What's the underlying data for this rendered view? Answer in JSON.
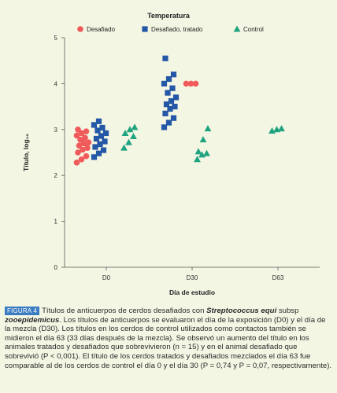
{
  "chart_data": {
    "type": "scatter",
    "title": "Temperatura",
    "xlabel": "Día de estudio",
    "ylabel": "Título, log₁₀",
    "categories": [
      "D0",
      "D30",
      "D63"
    ],
    "ylim": [
      0,
      5
    ],
    "yticks": [
      "0",
      "1",
      "2",
      "3",
      "4",
      "5"
    ],
    "grid": false,
    "legend_position": "top",
    "series": [
      {
        "name": "Desafiado",
        "color": "#f05a5a",
        "marker": "circle",
        "points": [
          {
            "category": "D0",
            "values": [
              2.28,
              2.35,
              2.42,
              2.5,
              2.56,
              2.6,
              2.65,
              2.7,
              2.72,
              2.78,
              2.82,
              2.87,
              2.92,
              2.96,
              3.0
            ]
          },
          {
            "category": "D30",
            "values": [
              4.0,
              4.0,
              4.0
            ]
          }
        ]
      },
      {
        "name": "Desafiado, tratado",
        "color": "#2457a6",
        "marker": "square",
        "points": [
          {
            "category": "D0",
            "values": [
              2.4,
              2.48,
              2.55,
              2.62,
              2.68,
              2.74,
              2.8,
              2.86,
              2.92,
              2.98,
              3.04,
              3.1,
              3.18
            ]
          },
          {
            "category": "D30",
            "values": [
              3.05,
              3.15,
              3.25,
              3.35,
              3.45,
              3.5,
              3.55,
              3.62,
              3.7,
              3.8,
              3.9,
              4.0,
              4.1,
              4.2,
              4.55
            ]
          }
        ]
      },
      {
        "name": "Control",
        "color": "#1fa37f",
        "marker": "triangle",
        "points": [
          {
            "category": "D0",
            "values": [
              2.6,
              2.72,
              2.85,
              2.92,
              3.0,
              3.05
            ]
          },
          {
            "category": "D30",
            "values": [
              2.35,
              2.45,
              2.48,
              2.52,
              2.78,
              3.02
            ]
          },
          {
            "category": "D63",
            "values": [
              2.97,
              3.0,
              3.02
            ]
          }
        ]
      }
    ]
  },
  "caption": {
    "figure_label": "FIGURA 4",
    "text_1": "Títulos de anticuerpos de cerdos desafiados con ",
    "organism": "Streptococcus equi",
    "text_2": " subsp ",
    "subspecies": "zooepidemicus",
    "text_3": ". Los títulos de anticuerpos se evaluaron el día de la exposición (D0) y el día de la mezcla (D30). Los títulos en los cerdos de control utilizados como contactos también se midieron el día 63 (33 días después de la mezcla). Se observó un aumento del título en los animales tratados y desafiados que sobrevivieron (n = 15) y en el animal desafiado que sobrevivió (P < 0,001). El título de los cerdos tratados y desafiados mezclados el día 63 fue comparable al de los cerdos de control el día 0 y el día 30 (P = 0,74 y P = 0,07, respectivamente)."
  }
}
